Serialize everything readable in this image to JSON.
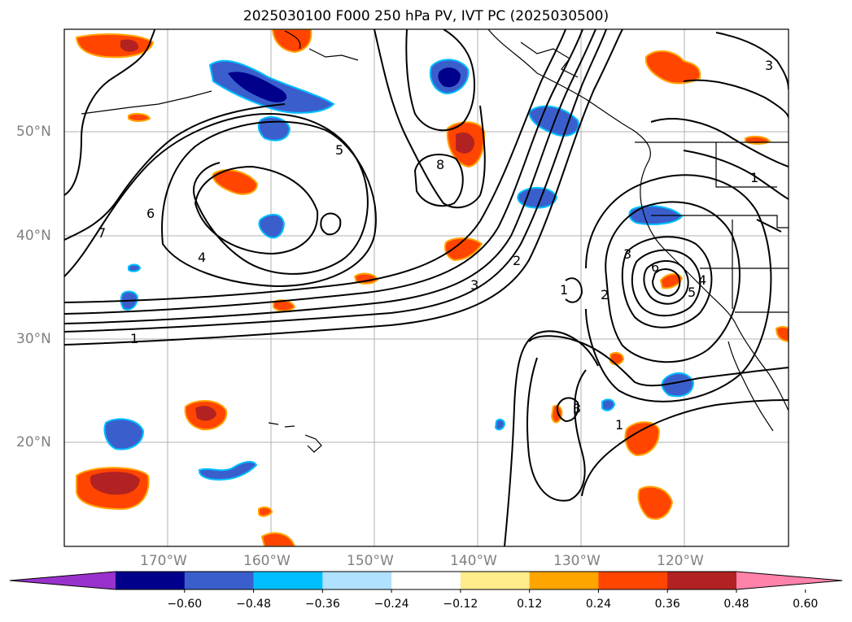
{
  "title": "2025030100 F000 250 hPa PV, IVT PC (2025030500)",
  "map": {
    "lat_labels": [
      "50°N",
      "40°N",
      "30°N",
      "20°N"
    ],
    "lon_labels": [
      "170°W",
      "160°W",
      "150°W",
      "140°W",
      "130°W",
      "120°W"
    ],
    "contour_labels": [
      "1",
      "2",
      "3",
      "4",
      "5",
      "6",
      "7",
      "8",
      "1",
      "2",
      "3",
      "4",
      "5",
      "6",
      "3",
      "1",
      "3",
      "1"
    ]
  },
  "colorbar": {
    "ticks": [
      "−0.60",
      "−0.48",
      "−0.36",
      "−0.24",
      "−0.12",
      "0.12",
      "0.24",
      "0.36",
      "0.48",
      "0.60"
    ],
    "colors": [
      "#9932CC",
      "#00008B",
      "#3A5FCD",
      "#00BFFF",
      "#B0E2FF",
      "#FFFFFF",
      "#FFEC8B",
      "#FFA500",
      "#FF4500",
      "#B22222",
      "#FF82AB"
    ]
  }
}
